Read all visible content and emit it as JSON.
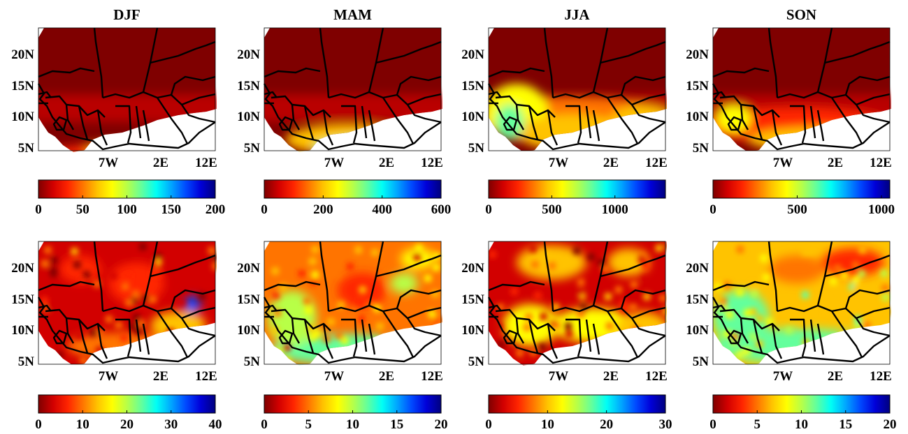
{
  "colormap": [
    "#7f0000",
    "#d20000",
    "#ff2500",
    "#ff7400",
    "#ffc300",
    "#ffff00",
    "#b8ff47",
    "#63ff9c",
    "#00fff5",
    "#00a7ff",
    "#0049ff",
    "#0000d9",
    "#00007f"
  ],
  "lat_ticks": [
    "20N",
    "15N",
    "10N",
    "5N"
  ],
  "lon_ticks": [
    "7W",
    "2E",
    "12E"
  ],
  "rows": [
    {
      "panels": [
        {
          "title": "DJF",
          "theme": "dry_south_coast",
          "colorbar": {
            "range": [
              0,
              200
            ],
            "ticks": [
              "0",
              "50",
              "100",
              "150",
              "200"
            ]
          }
        },
        {
          "title": "MAM",
          "theme": "wet_south",
          "colorbar": {
            "range": [
              0,
              600
            ],
            "ticks": [
              "0",
              "200",
              "400",
              "600"
            ]
          }
        },
        {
          "title": "JJA",
          "theme": "monsoon",
          "colorbar": {
            "range": [
              0,
              1400
            ],
            "ticks": [
              "0",
              "500",
              "1000"
            ]
          }
        },
        {
          "title": "SON",
          "theme": "monsoon_late",
          "colorbar": {
            "range": [
              0,
              1050
            ],
            "ticks": [
              "0",
              "500",
              "1000"
            ]
          }
        }
      ]
    },
    {
      "panels": [
        {
          "title": "",
          "theme": "var_djf",
          "colorbar": {
            "range": [
              0,
              40
            ],
            "ticks": [
              "0",
              "10",
              "20",
              "30",
              "40"
            ]
          }
        },
        {
          "title": "",
          "theme": "var_mam",
          "colorbar": {
            "range": [
              0,
              20
            ],
            "ticks": [
              "0",
              "5",
              "10",
              "15",
              "20"
            ]
          }
        },
        {
          "title": "",
          "theme": "var_jja",
          "colorbar": {
            "range": [
              0,
              30
            ],
            "ticks": [
              "0",
              "10",
              "20",
              "30"
            ]
          }
        },
        {
          "title": "",
          "theme": "var_son",
          "colorbar": {
            "range": [
              0,
              20
            ],
            "ticks": [
              "0",
              "5",
              "10",
              "15",
              "20"
            ]
          }
        }
      ]
    }
  ]
}
